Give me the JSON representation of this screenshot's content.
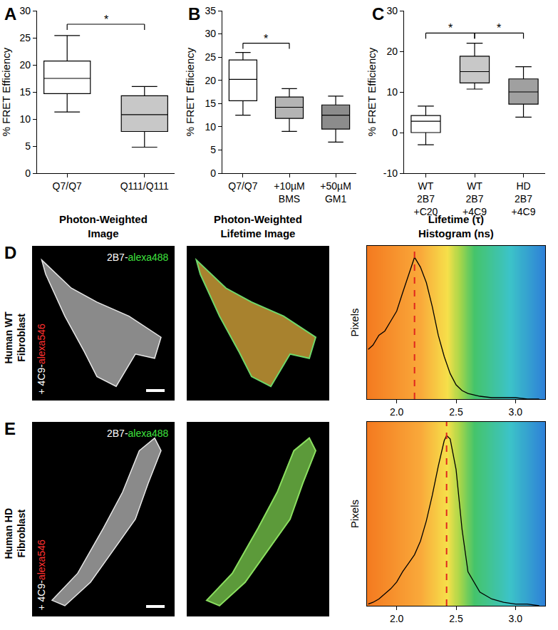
{
  "chart_data": [
    {
      "type": "box",
      "panel_label": "A",
      "ylabel": "% FRET Efficiency",
      "categories": [
        "Q7/Q7",
        "Q111/Q111"
      ],
      "values": [
        {
          "min": 11.3,
          "q1": 14.7,
          "median": 17.5,
          "q3": 20.7,
          "max": 25.4
        },
        {
          "min": 4.8,
          "q1": 7.7,
          "median": 10.8,
          "q3": 14.3,
          "max": 16.0
        }
      ],
      "colors": [
        "#ffffff",
        "#c8c8c8"
      ],
      "ylim": [
        0,
        30
      ],
      "yticks": [
        0,
        5,
        10,
        15,
        20,
        25,
        30
      ],
      "grid": false,
      "significance": [
        {
          "from": 0,
          "to": 1,
          "y": 27.5,
          "label": "*"
        }
      ]
    },
    {
      "type": "box",
      "panel_label": "B",
      "ylabel": "% FRET Efficiency",
      "categories": [
        "Q7/Q7",
        "+10µM\nBMS",
        "+50µM\nGM1"
      ],
      "values": [
        {
          "min": 12.5,
          "q1": 15.6,
          "median": 20.2,
          "q3": 24.4,
          "max": 26.0
        },
        {
          "min": 9.0,
          "q1": 11.8,
          "median": 14.2,
          "q3": 16.4,
          "max": 18.2
        },
        {
          "min": 6.7,
          "q1": 9.5,
          "median": 12.5,
          "q3": 14.7,
          "max": 16.6
        }
      ],
      "colors": [
        "#ffffff",
        "#b4b4b4",
        "#8c8c8c"
      ],
      "ylim": [
        0,
        35
      ],
      "yticks": [
        0,
        5,
        10,
        15,
        20,
        25,
        30,
        35
      ],
      "grid": false,
      "significance": [
        {
          "from": 0,
          "to": 1,
          "y": 28,
          "label": "*"
        }
      ]
    },
    {
      "type": "box",
      "panel_label": "C",
      "ylabel": "% FRET Efficiency",
      "categories": [
        "WT\n2B7\n+C20",
        "WT\n2B7\n+4C9",
        "HD\n2B7\n+4C9"
      ],
      "values": [
        {
          "min": -3.0,
          "q1": 0.0,
          "median": 2.8,
          "q3": 4.2,
          "max": 6.5
        },
        {
          "min": 10.7,
          "q1": 12.2,
          "median": 15.0,
          "q3": 18.8,
          "max": 22.0
        },
        {
          "min": 3.8,
          "q1": 7.0,
          "median": 10.0,
          "q3": 13.2,
          "max": 16.2
        }
      ],
      "colors": [
        "#ffffff",
        "#c8c8c8",
        "#a0a0a0"
      ],
      "ylim": [
        -10,
        30
      ],
      "yticks": [
        -10,
        0,
        10,
        20,
        30
      ],
      "grid": false,
      "significance": [
        {
          "from": 0,
          "to": 1,
          "y": 24.5,
          "label": "*"
        },
        {
          "from": 1,
          "to": 2,
          "y": 24.5,
          "label": "*"
        }
      ]
    },
    {
      "type": "line",
      "ylabel": "Pixels",
      "tick_labels": "x",
      "color": "#000000",
      "x": [
        1.76,
        1.8,
        1.85,
        1.9,
        1.95,
        2.0,
        2.05,
        2.1,
        2.15,
        2.2,
        2.25,
        2.3,
        2.35,
        2.4,
        2.45,
        2.5,
        2.55,
        2.6,
        2.7,
        2.8,
        2.9,
        3.0,
        3.1,
        3.2
      ],
      "values": [
        0.35,
        0.38,
        0.45,
        0.48,
        0.55,
        0.62,
        0.75,
        0.88,
        1.0,
        0.93,
        0.82,
        0.65,
        0.45,
        0.3,
        0.18,
        0.1,
        0.06,
        0.04,
        0.02,
        0.01,
        0.01,
        0.01,
        0,
        0
      ],
      "peak": 2.15,
      "xlim": [
        1.75,
        3.25
      ],
      "xticks": [
        {
          "value": 2,
          "label": "2.0"
        },
        {
          "value": 2.5,
          "label": "2.5"
        },
        {
          "value": 3,
          "label": "3.0"
        }
      ],
      "ylim": [
        0,
        1.08
      ],
      "grid": false
    },
    {
      "type": "line",
      "ylabel": "Pixels",
      "tick_labels": "x",
      "color": "#000000",
      "x": [
        1.76,
        1.8,
        1.85,
        1.9,
        1.95,
        2.0,
        2.05,
        2.1,
        2.15,
        2.2,
        2.25,
        2.3,
        2.35,
        2.4,
        2.42,
        2.45,
        2.5,
        2.55,
        2.6,
        2.7,
        2.8,
        2.9,
        3.0,
        3.1,
        3.2
      ],
      "values": [
        0.01,
        0.02,
        0.04,
        0.07,
        0.1,
        0.14,
        0.2,
        0.25,
        0.3,
        0.38,
        0.5,
        0.65,
        0.82,
        0.97,
        1.0,
        0.98,
        0.8,
        0.45,
        0.2,
        0.08,
        0.04,
        0.02,
        0.01,
        0.01,
        0
      ],
      "peak": 2.42,
      "xlim": [
        1.75,
        3.25
      ],
      "xticks": [
        {
          "value": 2,
          "label": "2.0"
        },
        {
          "value": 2.5,
          "label": "2.5"
        },
        {
          "value": 3,
          "label": "3.0"
        }
      ],
      "ylim": [
        0,
        1.08
      ],
      "grid": false
    }
  ],
  "columns": [
    "Photon-Weighted\nImage",
    "Photon-Weighted\nLifetime Image",
    "Lifetime (τ)\nHistogram (ns)"
  ],
  "rows": [
    {
      "panel_label": "D",
      "label": "Human WT\nFibroblast",
      "donor": "2B7-alexa488",
      "acceptor": "+ 4C9-alexa546"
    },
    {
      "panel_label": "E",
      "label": "Human HD\nFibroblast",
      "donor": "2B7-alexa488",
      "acceptor": "+ 4C9-alexa546"
    }
  ]
}
